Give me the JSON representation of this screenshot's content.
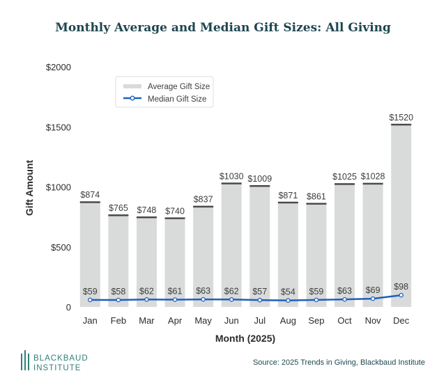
{
  "chart_data": {
    "type": "bar",
    "title": "Monthly Average and Median Gift Sizes: All Giving",
    "xlabel": "Month (2025)",
    "ylabel": "Gift Amount",
    "ylim": [
      0,
      2000
    ],
    "yticks": [
      0,
      500,
      1000,
      1500,
      2000
    ],
    "ytick_labels": [
      "0",
      "$500",
      "$1000",
      "$1500",
      "$2000"
    ],
    "categories": [
      "Jan",
      "Feb",
      "Mar",
      "Apr",
      "May",
      "Jun",
      "Jul",
      "Aug",
      "Sep",
      "Oct",
      "Nov",
      "Dec"
    ],
    "series": [
      {
        "name": "Average Gift Size",
        "kind": "bar",
        "color": "#d9dbdb",
        "cap_color": "#4a4a4a",
        "values": [
          874,
          765,
          748,
          740,
          837,
          1030,
          1009,
          871,
          861,
          1025,
          1028,
          1520
        ],
        "labels": [
          "$874",
          "$765",
          "$748",
          "$740",
          "$837",
          "$1030",
          "$1009",
          "$871",
          "$861",
          "$1025",
          "$1028",
          "$1520"
        ]
      },
      {
        "name": "Median Gift Size",
        "kind": "line",
        "color": "#1f5fbf",
        "values": [
          59,
          58,
          62,
          61,
          63,
          62,
          57,
          54,
          59,
          63,
          69,
          98
        ],
        "labels": [
          "$59",
          "$58",
          "$62",
          "$61",
          "$63",
          "$62",
          "$57",
          "$54",
          "$59",
          "$63",
          "$69",
          "$98"
        ]
      }
    ],
    "legend_position": "top-left"
  },
  "branding": {
    "logo_line1": "BLACKBAUD",
    "logo_line2": "INSTITUTE",
    "logo_color": "#2f7f78",
    "source": "Source: 2025 Trends in Giving, Blackbaud Institute"
  }
}
